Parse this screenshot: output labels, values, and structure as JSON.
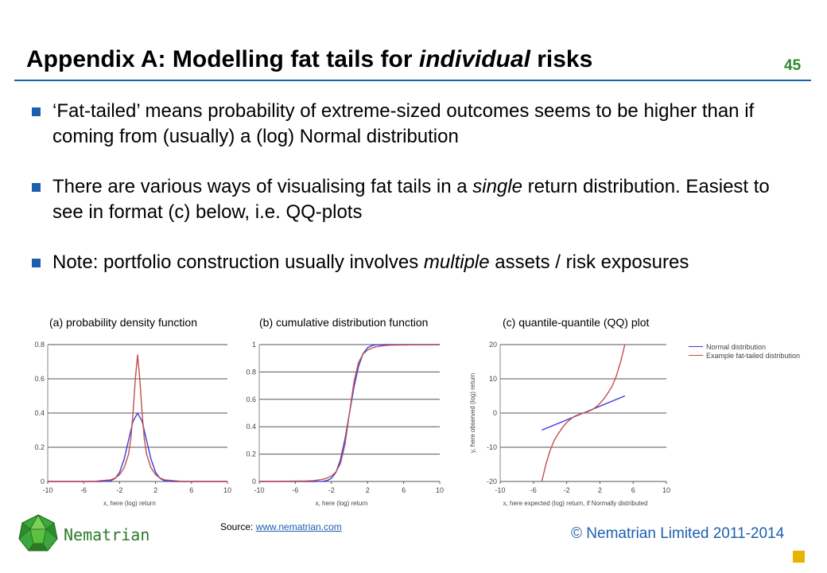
{
  "title_parts": {
    "before": "Appendix A: Modelling fat tails for ",
    "italic": "individual",
    "after": " risks"
  },
  "slide_number": "45",
  "bullets": [
    {
      "before": "‘Fat-tailed’ means probability of extreme-sized outcomes seems to be higher than if coming from (usually) a (log) Normal distribution",
      "italic": "",
      "after": ""
    },
    {
      "before": "There are various ways of visualising fat tails in a ",
      "italic": "single",
      "after": " return distribution. Easiest to see in format (c) below, i.e. QQ-plots"
    },
    {
      "before": "Note: portfolio construction usually involves ",
      "italic": "multiple",
      "after": " assets / risk exposures"
    }
  ],
  "colors": {
    "normal": "#3a3adf",
    "fat": "#c0504d",
    "accent": "#1c5fad",
    "brand_green": "#2e8b2e"
  },
  "chart_data": [
    {
      "type": "line",
      "title": "(a) probability density function",
      "xlabel": "x, here (log) return",
      "ylabel": "",
      "xlim": [
        -10,
        10
      ],
      "ylim": [
        0,
        0.8
      ],
      "xticks": [
        -10,
        -6,
        -2,
        2,
        6,
        10
      ],
      "yticks": [
        0,
        0.2,
        0.4,
        0.6,
        0.8
      ],
      "ytick_labels": [
        "0",
        "0.2",
        "0.4",
        "0.6",
        "0.8"
      ],
      "grid": "horizontal",
      "series": [
        {
          "color_key": "normal",
          "x": [
            -10,
            -5,
            -4,
            -3,
            -2.5,
            -2,
            -1.5,
            -1,
            -0.5,
            0,
            0.5,
            1,
            1.5,
            2,
            2.5,
            3,
            4,
            5,
            10
          ],
          "y": [
            0,
            0,
            0,
            0.004,
            0.018,
            0.054,
            0.13,
            0.242,
            0.352,
            0.399,
            0.352,
            0.242,
            0.13,
            0.054,
            0.018,
            0.004,
            0,
            0,
            0
          ]
        },
        {
          "color_key": "fat",
          "x": [
            -10,
            -5,
            -4,
            -3,
            -2.5,
            -2,
            -1.5,
            -1,
            -0.75,
            -0.5,
            -0.25,
            0,
            0.25,
            0.5,
            0.75,
            1,
            1.5,
            2,
            2.5,
            3,
            4,
            5,
            10
          ],
          "y": [
            0,
            0,
            0.005,
            0.01,
            0.02,
            0.04,
            0.08,
            0.16,
            0.25,
            0.4,
            0.6,
            0.74,
            0.6,
            0.4,
            0.25,
            0.16,
            0.08,
            0.04,
            0.02,
            0.01,
            0.005,
            0,
            0
          ]
        }
      ]
    },
    {
      "type": "line",
      "title": "(b) cumulative  distribution function",
      "xlabel": "x, here (log) return",
      "ylabel": "",
      "xlim": [
        -10,
        10
      ],
      "ylim": [
        0,
        1
      ],
      "xticks": [
        -10,
        -6,
        -2,
        2,
        6,
        10
      ],
      "yticks": [
        0,
        0.2,
        0.4,
        0.6,
        0.8,
        1
      ],
      "ytick_labels": [
        "0",
        "0.2",
        "0.4",
        "0.6",
        "0.8",
        "1"
      ],
      "grid": "horizontal",
      "series": [
        {
          "color_key": "normal",
          "x": [
            -10,
            -4,
            -3,
            -2.5,
            -2,
            -1.5,
            -1,
            -0.5,
            0,
            0.5,
            1,
            1.5,
            2,
            2.5,
            3,
            4,
            10
          ],
          "y": [
            0,
            0,
            0.001,
            0.006,
            0.023,
            0.067,
            0.159,
            0.309,
            0.5,
            0.691,
            0.841,
            0.933,
            0.977,
            0.994,
            0.999,
            1,
            1
          ]
        },
        {
          "color_key": "fat",
          "x": [
            -10,
            -5,
            -4,
            -3,
            -2.5,
            -2,
            -1.5,
            -1,
            -0.5,
            0,
            0.5,
            1,
            1.5,
            2,
            2.5,
            3,
            4,
            5,
            10
          ],
          "y": [
            0,
            0.003,
            0.006,
            0.015,
            0.025,
            0.04,
            0.07,
            0.13,
            0.27,
            0.5,
            0.73,
            0.87,
            0.93,
            0.96,
            0.975,
            0.985,
            0.994,
            0.997,
            1
          ]
        }
      ]
    },
    {
      "type": "line",
      "title": "(c) quantile-quantile  (QQ) plot",
      "xlabel": "x, here expected (log) return, if Normally distributed",
      "ylabel": "y, here observed (log) return",
      "xlim": [
        -10,
        10
      ],
      "ylim": [
        -20,
        20
      ],
      "xticks": [
        -10,
        -6,
        -2,
        2,
        6,
        10
      ],
      "yticks": [
        -20,
        -10,
        0,
        10,
        20
      ],
      "ytick_labels": [
        "-20",
        "-10",
        "0",
        "10",
        "20"
      ],
      "grid": "horizontal",
      "legend": {
        "position": "right",
        "entries": [
          {
            "label": "Normal distribution",
            "color_key": "normal"
          },
          {
            "label": "Example fat-tailed distribution",
            "color_key": "fat"
          }
        ]
      },
      "series": [
        {
          "color_key": "normal",
          "x": [
            -5,
            5
          ],
          "y": [
            -5,
            5
          ]
        },
        {
          "color_key": "fat",
          "x": [
            -5,
            -4.5,
            -4,
            -3.5,
            -3,
            -2.5,
            -2,
            -1.5,
            -1,
            -0.5,
            0,
            0.5,
            1,
            1.5,
            2,
            2.5,
            3,
            3.5,
            4,
            4.5,
            5
          ],
          "y": [
            -20,
            -15,
            -11,
            -8,
            -6,
            -4.2,
            -2.8,
            -1.7,
            -0.9,
            -0.4,
            0,
            0.4,
            0.9,
            1.7,
            2.8,
            4.2,
            6,
            8,
            11,
            15,
            20
          ]
        }
      ]
    }
  ],
  "source": {
    "label": "Source: ",
    "link": "www.nematrian.com"
  },
  "brand_name": "Nematrian",
  "copyright": "© Nematrian Limited 2011-2014"
}
